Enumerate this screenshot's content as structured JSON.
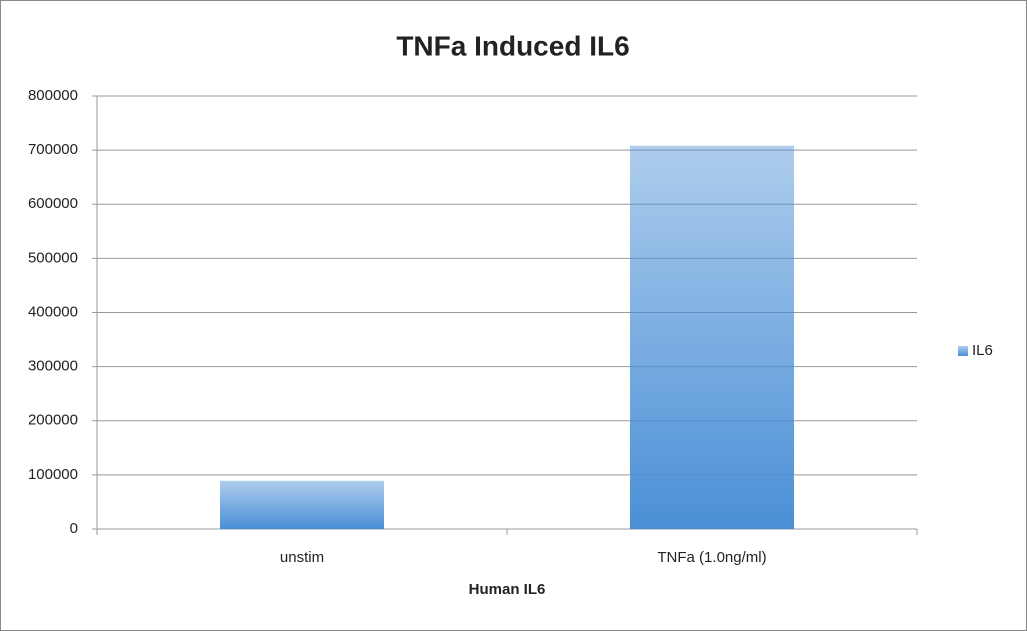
{
  "chart_data": {
    "type": "bar",
    "title": "TNFa Induced IL6",
    "x_label": "Human IL6",
    "categories": [
      "unstim",
      "TNFa (1.0ng/ml)"
    ],
    "series": [
      {
        "name": "IL6",
        "color": "#4a8fd6",
        "values": [
          89000,
          708000
        ]
      }
    ],
    "ylim": [
      0,
      800000
    ],
    "yticks": [
      0,
      100000,
      200000,
      300000,
      400000,
      500000,
      600000,
      700000,
      800000
    ],
    "grid": true,
    "legend": "right"
  }
}
